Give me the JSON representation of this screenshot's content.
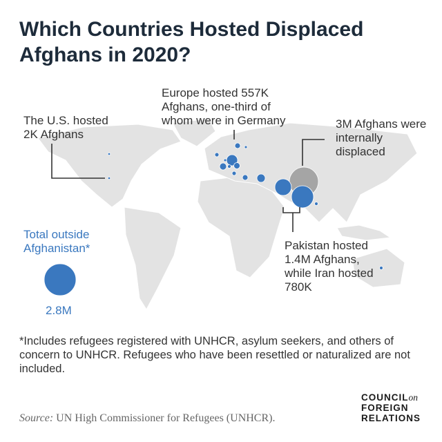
{
  "title": "Which Countries Hosted Displaced Afghans in 2020?",
  "annotations": {
    "us": "The U.S. hosted 2K Afghans",
    "europe": "Europe hosted 557K Afghans, one-third of whom were in Germany",
    "idp": "3M Afghans were internally displaced",
    "pakistan_iran": "Pakistan hosted 1.4M Afghans, while Iran hosted 780K"
  },
  "legend": {
    "label": "Total outside Afghanistan*",
    "value": "2.8M"
  },
  "footnote": "*Includes refugees registered with UNHCR, asylum seekers, and others of concern to UNHCR. Refugees who have been resettled or naturalized are not included.",
  "source": {
    "label": "Source:",
    "text": "UN High Commissioner for Refugees (UNHCR)."
  },
  "logo": {
    "line1": "COUNCIL",
    "on": "on",
    "line2": "FOREIGN",
    "line3": "RELATIONS"
  },
  "colors": {
    "bubble": "#3a78bf",
    "idp_bubble": "#9a9a9a",
    "land": "#e3e3e3",
    "title": "#1d2b3a"
  },
  "map_data": {
    "hosts": [
      {
        "name": "Pakistan",
        "afghans_thousands": 1400
      },
      {
        "name": "Iran",
        "afghans_thousands": 780
      },
      {
        "name": "Europe",
        "afghans_thousands": 557
      },
      {
        "name": "United States",
        "afghans_thousands": 2
      }
    ],
    "internally_displaced_thousands": 3000,
    "total_outside_thousands": 2800
  }
}
